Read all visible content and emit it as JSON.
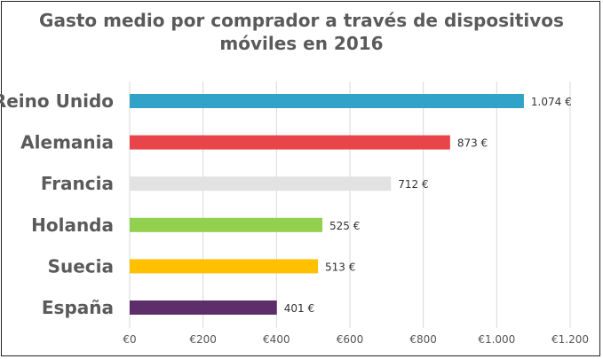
{
  "chart_data": {
    "type": "bar",
    "orientation": "horizontal",
    "title": "Gasto medio por comprador a través de dispositivos móviles en 2016",
    "title_lines": [
      "Gasto medio por comprador a través de dispositivos",
      "móviles en 2016"
    ],
    "categories": [
      "Reino Unido",
      "Alemania",
      "Francia",
      "Holanda",
      "Suecia",
      "España"
    ],
    "values": [
      1074,
      873,
      712,
      525,
      513,
      401
    ],
    "value_labels": [
      "1.074 €",
      "873 €",
      "712 €",
      "525 €",
      "513 €",
      "401 €"
    ],
    "colors": [
      "#31a2c8",
      "#e8454b",
      "#e2e2e2",
      "#92d050",
      "#ffc000",
      "#5d2e6b"
    ],
    "xlim": [
      0,
      1200
    ],
    "x_ticks": [
      0,
      200,
      400,
      600,
      800,
      1000,
      1200
    ],
    "x_tick_labels": [
      "€0",
      "€200",
      "€400",
      "€600",
      "€800",
      "€1.000",
      "€1.200"
    ],
    "xlabel": "",
    "ylabel": "",
    "grid": true,
    "legend": false
  }
}
